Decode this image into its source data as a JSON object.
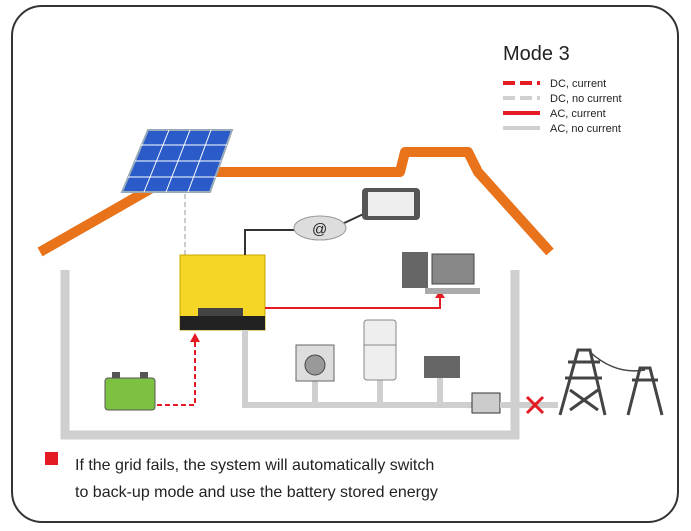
{
  "title": "Mode 3",
  "legend": [
    {
      "label": "DC, current"
    },
    {
      "label": "DC, no current"
    },
    {
      "label": "AC, current"
    },
    {
      "label": "AC, no current"
    }
  ],
  "note": {
    "lines": [
      "If the grid fails, the system will automatically switch",
      "to back-up mode and use the battery stored energy"
    ]
  }
}
